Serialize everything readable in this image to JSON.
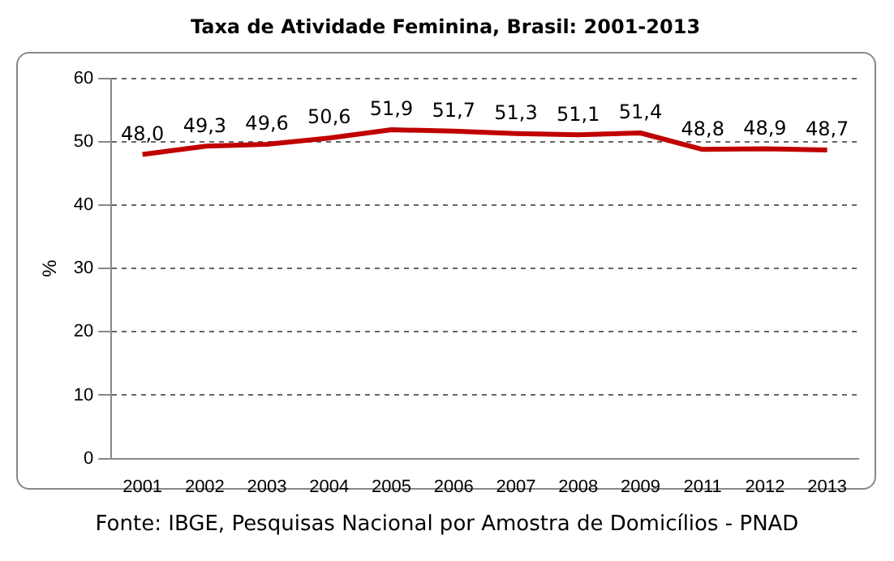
{
  "chart_data": {
    "type": "line",
    "title": "Taxa de Atividade Feminina, Brasil: 2001-2013",
    "ylabel": "%",
    "categories": [
      "2001",
      "2002",
      "2003",
      "2004",
      "2005",
      "2006",
      "2007",
      "2008",
      "2009",
      "2011",
      "2012",
      "2013"
    ],
    "series": [
      {
        "color": "#c00000",
        "values": [
          48.0,
          49.3,
          49.6,
          50.6,
          51.9,
          51.7,
          51.3,
          51.1,
          51.4,
          48.8,
          48.9,
          48.7
        ],
        "value_labels": [
          "48,0",
          "49,3",
          "49,6",
          "50,6",
          "51,9",
          "51,7",
          "51,3",
          "51,1",
          "51,4",
          "48,8",
          "48,9",
          "48,7"
        ]
      }
    ],
    "ylim": [
      0,
      60
    ],
    "yticks": [
      0,
      10,
      20,
      30,
      40,
      50,
      60
    ],
    "grid": "y",
    "legend": false,
    "marker": "none",
    "line_style": "solid",
    "annotations": [
      "Fonte: IBGE, Pesquisas Nacional por Amostra de Domicílios - PNAD"
    ]
  }
}
